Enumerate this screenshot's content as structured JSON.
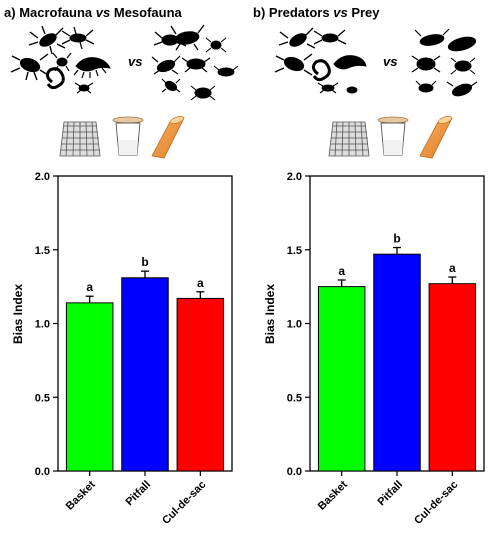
{
  "chart_data": [
    {
      "type": "bar",
      "panel_letter": "a)",
      "title_parts": [
        "Macrofauna",
        "vs",
        "Mesofauna"
      ],
      "vs_label": "vs",
      "categories": [
        "Basket",
        "Pitfall",
        "Cul-de-sac"
      ],
      "values": [
        1.14,
        1.31,
        1.17
      ],
      "errors": [
        0.045,
        0.045,
        0.045
      ],
      "significance": [
        "a",
        "b",
        "a"
      ],
      "colors": [
        "#00ff00",
        "#0000ff",
        "#ff0000"
      ],
      "ylabel": "Bias Index",
      "ylim": [
        0.0,
        2.0
      ],
      "yticks": [
        "0.0",
        "0.5",
        "1.0",
        "1.5",
        "2.0"
      ],
      "grid": false,
      "icons": [
        "basket-trap-icon",
        "pitfall-trap-icon",
        "cul-de-sac-trap-icon"
      ]
    },
    {
      "type": "bar",
      "panel_letter": "b)",
      "title_parts": [
        "Predators",
        "vs",
        "Prey"
      ],
      "vs_label": "vs",
      "categories": [
        "Basket",
        "Pitfall",
        "Cul-de-sac"
      ],
      "values": [
        1.25,
        1.47,
        1.27
      ],
      "errors": [
        0.045,
        0.045,
        0.045
      ],
      "significance": [
        "a",
        "b",
        "a"
      ],
      "colors": [
        "#00ff00",
        "#0000ff",
        "#ff0000"
      ],
      "ylabel": "Bias Index",
      "ylim": [
        0.0,
        2.0
      ],
      "yticks": [
        "0.0",
        "0.5",
        "1.0",
        "1.5",
        "2.0"
      ],
      "grid": false,
      "icons": [
        "basket-trap-icon",
        "pitfall-trap-icon",
        "cul-de-sac-trap-icon"
      ]
    }
  ]
}
